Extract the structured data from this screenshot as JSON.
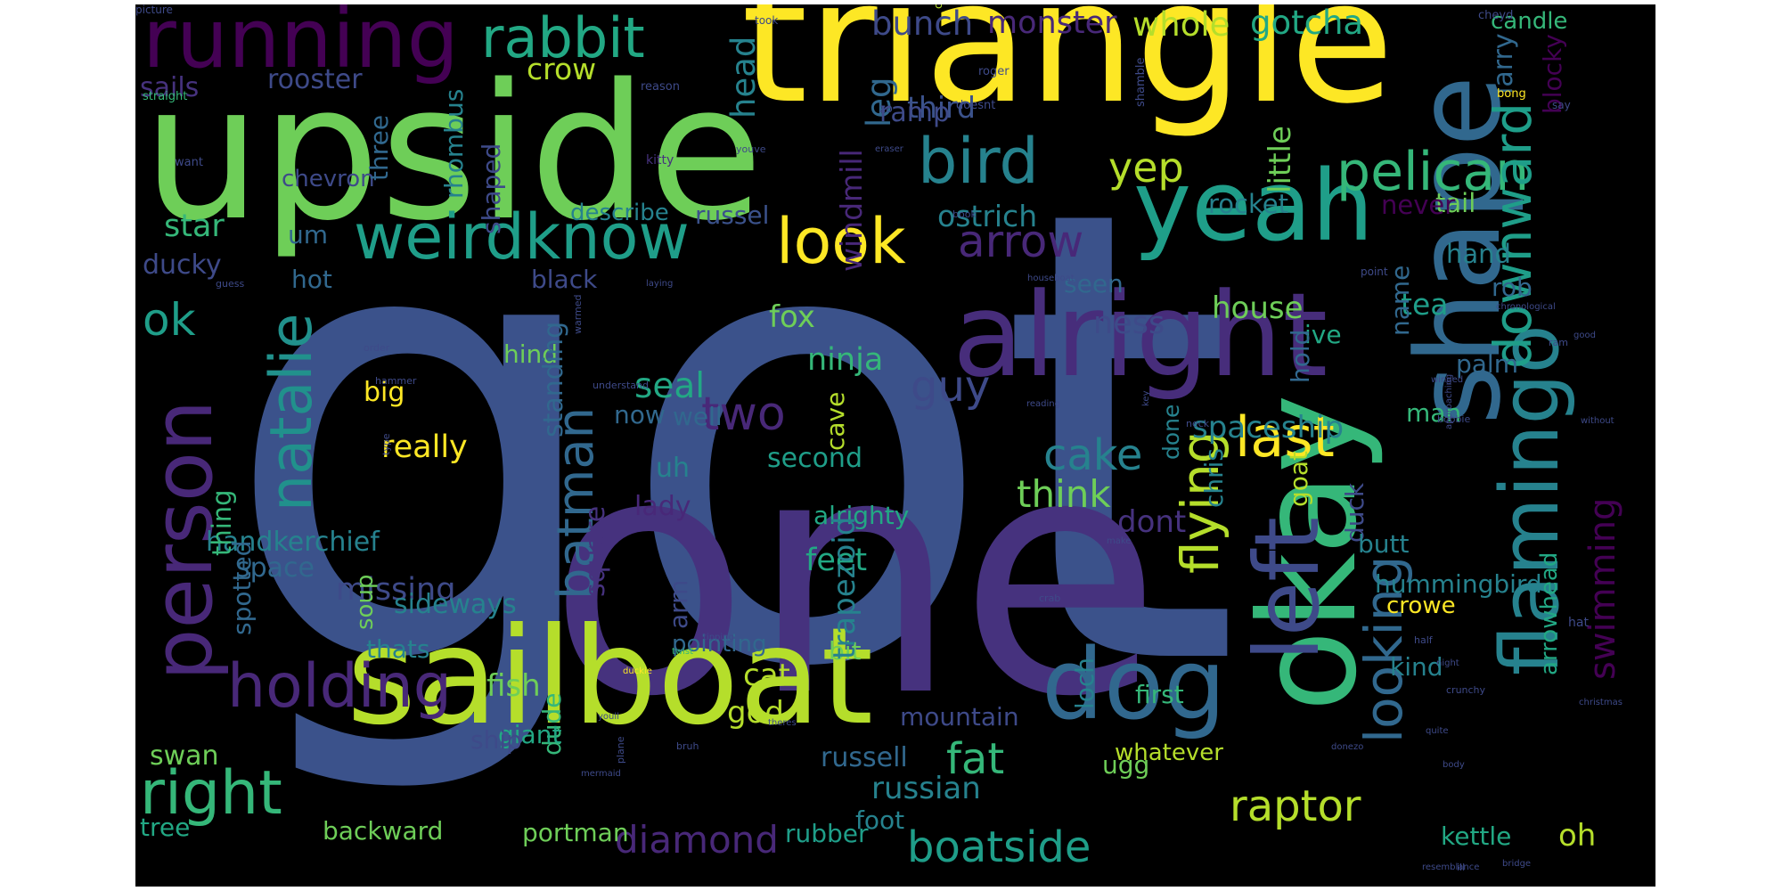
{
  "cloud": {
    "background": "#000000",
    "words": [
      {
        "t": "got",
        "c": "#3b528b"
      },
      {
        "t": "one",
        "c": "#46327e"
      },
      {
        "t": "triangle",
        "c": "#fde725"
      },
      {
        "t": "upside",
        "c": "#6ece58"
      },
      {
        "t": "sailboat",
        "c": "#b5de2b"
      },
      {
        "t": "okay",
        "c": "#35b779"
      },
      {
        "t": "shape",
        "c": "#31688e"
      },
      {
        "t": "yeah",
        "c": "#1f9e89"
      },
      {
        "t": "alright",
        "c": "#472d7b"
      },
      {
        "t": "flamingo",
        "c": "#26828e"
      },
      {
        "t": "left",
        "c": "#3e4a89"
      },
      {
        "t": "dog",
        "c": "#31688e"
      },
      {
        "t": "running",
        "c": "#440154"
      },
      {
        "t": "person",
        "c": "#482878"
      },
      {
        "t": "look",
        "c": "#fde725"
      },
      {
        "t": "weirdknow",
        "c": "#1f9e89"
      },
      {
        "t": "right",
        "c": "#35b779"
      },
      {
        "t": "holding",
        "c": "#482878"
      },
      {
        "t": "natalie",
        "c": "#21918c"
      },
      {
        "t": "bird",
        "c": "#26828e"
      },
      {
        "t": "last",
        "c": "#fde725"
      },
      {
        "t": "pelican",
        "c": "#35b779"
      },
      {
        "t": "flying",
        "c": "#b5de2b"
      },
      {
        "t": "downward",
        "c": "#1f9e89"
      },
      {
        "t": "rabbit",
        "c": "#22a884"
      },
      {
        "t": "looking",
        "c": "#31688e"
      },
      {
        "t": "batman",
        "c": "#31688e"
      },
      {
        "t": "arrow",
        "c": "#482878"
      },
      {
        "t": "cake",
        "c": "#26828e"
      },
      {
        "t": "raptor",
        "c": "#b5de2b"
      },
      {
        "t": "boatside",
        "c": "#1f9e89"
      },
      {
        "t": "fat",
        "c": "#35b779"
      },
      {
        "t": "guy",
        "c": "#3e4a89"
      },
      {
        "t": "two",
        "c": "#482878"
      },
      {
        "t": "yep",
        "c": "#b5de2b"
      },
      {
        "t": "ok",
        "c": "#1f9e89"
      },
      {
        "t": "think",
        "c": "#6ece58"
      },
      {
        "t": "swimming",
        "c": "#440154"
      },
      {
        "t": "diamond",
        "c": "#482878"
      },
      {
        "t": "whole",
        "c": "#b5de2b"
      },
      {
        "t": "bunch",
        "c": "#3e4a89"
      },
      {
        "t": "monster",
        "c": "#482878"
      },
      {
        "t": "gotcha",
        "c": "#22a884"
      },
      {
        "t": "leg",
        "c": "#31688e"
      },
      {
        "t": "crow",
        "c": "#b5de2b"
      },
      {
        "t": "rooster",
        "c": "#3e4a89"
      },
      {
        "t": "sails",
        "c": "#46327e"
      },
      {
        "t": "third",
        "c": "#3b528b"
      },
      {
        "t": "ramp",
        "c": "#3e4a89"
      },
      {
        "t": "head",
        "c": "#26828e"
      },
      {
        "t": "windmill",
        "c": "#482878"
      },
      {
        "t": "larry",
        "c": "#31688e"
      },
      {
        "t": "candle",
        "c": "#35b779"
      },
      {
        "t": "blocky",
        "c": "#440154"
      },
      {
        "t": "star",
        "c": "#35b779"
      },
      {
        "t": "chevron",
        "c": "#3e4a89"
      },
      {
        "t": "um",
        "c": "#31688e"
      },
      {
        "t": "three",
        "c": "#31688e"
      },
      {
        "t": "shaped",
        "c": "#3e4a89"
      },
      {
        "t": "rhombus",
        "c": "#26828e"
      },
      {
        "t": "describe",
        "c": "#26828e"
      },
      {
        "t": "russel",
        "c": "#3b528b"
      },
      {
        "t": "ostrich",
        "c": "#26828e"
      },
      {
        "t": "rocket",
        "c": "#26828e"
      },
      {
        "t": "tail",
        "c": "#6ece58"
      },
      {
        "t": "little",
        "c": "#6ece58"
      },
      {
        "t": "never",
        "c": "#440154"
      },
      {
        "t": "hand",
        "c": "#26828e"
      },
      {
        "t": "ducky",
        "c": "#3e4a89"
      },
      {
        "t": "hot",
        "c": "#31688e"
      },
      {
        "t": "black",
        "c": "#3e4a89"
      },
      {
        "t": "seen",
        "c": "#31688e"
      },
      {
        "t": "rob",
        "c": "#31688e"
      },
      {
        "t": "house",
        "c": "#6ece58"
      },
      {
        "t": "tea",
        "c": "#1f9e89"
      },
      {
        "t": "name",
        "c": "#31688e"
      },
      {
        "t": "fox",
        "c": "#6ece58"
      },
      {
        "t": "ness",
        "c": "#3e4a89"
      },
      {
        "t": "ive",
        "c": "#22a884"
      },
      {
        "t": "hind",
        "c": "#6ece58"
      },
      {
        "t": "ninja",
        "c": "#35b779"
      },
      {
        "t": "seal",
        "c": "#22a884"
      },
      {
        "t": "big",
        "c": "#fde725"
      },
      {
        "t": "hold",
        "c": "#31688e"
      },
      {
        "t": "palm",
        "c": "#31688e"
      },
      {
        "t": "now",
        "c": "#31688e"
      },
      {
        "t": "well",
        "c": "#31688e"
      },
      {
        "t": "standing",
        "c": "#31688e"
      },
      {
        "t": "spaceship",
        "c": "#26828e"
      },
      {
        "t": "really",
        "c": "#fde725"
      },
      {
        "t": "second",
        "c": "#1f9e89"
      },
      {
        "t": "done",
        "c": "#26828e"
      },
      {
        "t": "uh",
        "c": "#26828e"
      },
      {
        "t": "cave",
        "c": "#b5de2b"
      },
      {
        "t": "lady",
        "c": "#482878"
      },
      {
        "t": "alrighty",
        "c": "#22a884"
      },
      {
        "t": "dont",
        "c": "#46327e"
      },
      {
        "t": "goat",
        "c": "#b5de2b"
      },
      {
        "t": "chris",
        "c": "#26828e"
      },
      {
        "t": "man",
        "c": "#35b779"
      },
      {
        "t": "handkerchief",
        "c": "#26828e"
      },
      {
        "t": "duck",
        "c": "#3e4a89"
      },
      {
        "t": "feet",
        "c": "#22a884"
      },
      {
        "t": "butt",
        "c": "#26828e"
      },
      {
        "t": "hummingbird",
        "c": "#26828e"
      },
      {
        "t": "thing",
        "c": "#35b779"
      },
      {
        "t": "missing",
        "c": "#3e4a89"
      },
      {
        "t": "square",
        "c": "#46327e"
      },
      {
        "t": "sideways",
        "c": "#26828e"
      },
      {
        "t": "crowe",
        "c": "#fde725"
      },
      {
        "t": "soup",
        "c": "#6ece58"
      },
      {
        "t": "spotted",
        "c": "#31688e"
      },
      {
        "t": "thats",
        "c": "#26828e"
      },
      {
        "t": "arm",
        "c": "#3e4a89"
      },
      {
        "t": "pointing",
        "c": "#31688e"
      },
      {
        "t": "kind",
        "c": "#26828e"
      },
      {
        "t": "arrowhead",
        "c": "#22a884"
      },
      {
        "t": "bit",
        "c": "#6ece58"
      },
      {
        "t": "trapezoid",
        "c": "#26828e"
      },
      {
        "t": "cat",
        "c": "#b5de2b"
      },
      {
        "t": "fish",
        "c": "#6ece58"
      },
      {
        "t": "god",
        "c": "#b5de2b"
      },
      {
        "t": "first",
        "c": "#35b779"
      },
      {
        "t": "loch",
        "c": "#26828e"
      },
      {
        "t": "space",
        "c": "#31688e"
      },
      {
        "t": "dude",
        "c": "#35b779"
      },
      {
        "t": "mountain",
        "c": "#3e4a89"
      },
      {
        "t": "giant",
        "c": "#22a884"
      },
      {
        "t": "ship",
        "c": "#3e4a89"
      },
      {
        "t": "swan",
        "c": "#6ece58"
      },
      {
        "t": "russell",
        "c": "#31688e"
      },
      {
        "t": "whatever",
        "c": "#b5de2b"
      },
      {
        "t": "ugg",
        "c": "#6ece58"
      },
      {
        "t": "russian",
        "c": "#26828e"
      },
      {
        "t": "foot",
        "c": "#26828e"
      },
      {
        "t": "oh",
        "c": "#b5de2b"
      },
      {
        "t": "tree",
        "c": "#22a884"
      },
      {
        "t": "backward",
        "c": "#6ece58"
      },
      {
        "t": "portman",
        "c": "#6ece58"
      },
      {
        "t": "rubber",
        "c": "#1f9e89"
      },
      {
        "t": "kettle",
        "c": "#22a884"
      },
      {
        "t": "call",
        "c": "#b5de2b"
      },
      {
        "t": "took",
        "c": "#3e4a89"
      },
      {
        "t": "cheyd",
        "c": "#3e4a89"
      },
      {
        "t": "reason",
        "c": "#3e4a89"
      },
      {
        "t": "roger",
        "c": "#3e4a89"
      },
      {
        "t": "doesnt",
        "c": "#3e4a89"
      },
      {
        "t": "shamble",
        "c": "#3e4a89"
      },
      {
        "t": "bong",
        "c": "#fde725"
      },
      {
        "t": "say",
        "c": "#3e4a89"
      },
      {
        "t": "straight",
        "c": "#35b779"
      },
      {
        "t": "zo",
        "c": "#3e4a89"
      },
      {
        "t": "want",
        "c": "#3e4a89"
      },
      {
        "t": "kitty",
        "c": "#46327e"
      },
      {
        "t": "youve",
        "c": "#3e4a89"
      },
      {
        "t": "eraser",
        "c": "#3e4a89"
      },
      {
        "t": "book",
        "c": "#3e4a89"
      },
      {
        "t": "point",
        "c": "#3e4a89"
      },
      {
        "t": "laying",
        "c": "#3e4a89"
      },
      {
        "t": "houseboat",
        "c": "#3e4a89"
      },
      {
        "t": "guess",
        "c": "#3e4a89"
      },
      {
        "t": "chronological",
        "c": "#3e4a89"
      },
      {
        "t": "ram",
        "c": "#3e4a89"
      },
      {
        "t": "order",
        "c": "#3e4a89"
      },
      {
        "t": "warmed",
        "c": "#3e4a89"
      },
      {
        "t": "understand",
        "c": "#3e4a89"
      },
      {
        "t": "winged",
        "c": "#3e4a89"
      },
      {
        "t": "good",
        "c": "#3e4a89"
      },
      {
        "t": "boobie",
        "c": "#3e4a89"
      },
      {
        "t": "key",
        "c": "#3e4a89"
      },
      {
        "t": "neck",
        "c": "#3e4a89"
      },
      {
        "t": "reading",
        "c": "#3e4a89"
      },
      {
        "t": "hammer",
        "c": "#3e4a89"
      },
      {
        "t": "type",
        "c": "#3e4a89"
      },
      {
        "t": "without",
        "c": "#3e4a89"
      },
      {
        "t": "approaching",
        "c": "#3e4a89"
      },
      {
        "t": "crab",
        "c": "#3e4a89"
      },
      {
        "t": "make",
        "c": "#3e4a89"
      },
      {
        "t": "half",
        "c": "#3e4a89"
      },
      {
        "t": "hat",
        "c": "#3e4a89"
      },
      {
        "t": "tipping",
        "c": "#3e4a89"
      },
      {
        "t": "twist",
        "c": "#35b779"
      },
      {
        "t": "night",
        "c": "#3e4a89"
      },
      {
        "t": "duckie",
        "c": "#fde725"
      },
      {
        "t": "crunchy",
        "c": "#3e4a89"
      },
      {
        "t": "christmas",
        "c": "#3e4a89"
      },
      {
        "t": "theres",
        "c": "#3e4a89"
      },
      {
        "t": "quite",
        "c": "#3e4a89"
      },
      {
        "t": "youll",
        "c": "#3e4a89"
      },
      {
        "t": "bruh",
        "c": "#3e4a89"
      },
      {
        "t": "plane",
        "c": "#3e4a89"
      },
      {
        "t": "mermaid",
        "c": "#3e4a89"
      },
      {
        "t": "donezo",
        "c": "#3e4a89"
      },
      {
        "t": "body",
        "c": "#3e4a89"
      },
      {
        "t": "ill",
        "c": "#3e4a89"
      },
      {
        "t": "resemblance",
        "c": "#3e4a89"
      },
      {
        "t": "bridge",
        "c": "#3e4a89"
      },
      {
        "t": "picture",
        "c": "#3e4a89"
      }
    ]
  }
}
